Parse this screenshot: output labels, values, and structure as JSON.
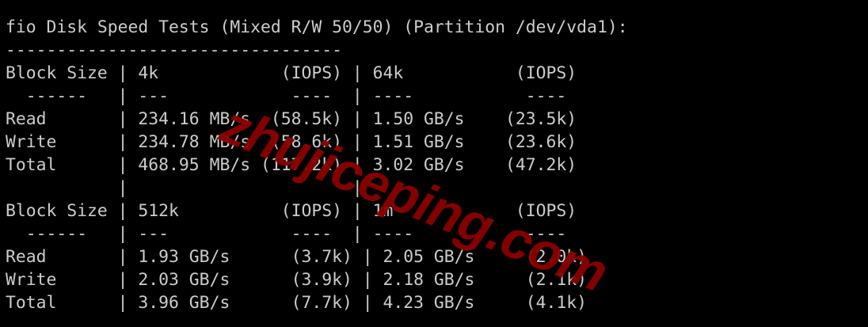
{
  "terminal": {
    "lines": [
      "fio Disk Speed Tests (Mixed R/W 50/50) (Partition /dev/vda1):",
      "---------------------------------",
      "Block Size | 4k            (IOPS) | 64k           (IOPS)",
      "  ------   | ---            ----  | ----           ---- ",
      "Read       | 234.16 MB/s  (58.5k) | 1.50 GB/s    (23.5k)",
      "Write      | 234.78 MB/s  (58.6k) | 1.51 GB/s    (23.6k)",
      "Total      | 468.95 MB/s (117.2k) | 3.02 GB/s    (47.2k)",
      "           |                      |",
      "Block Size | 512k          (IOPS) | 1m            (IOPS)",
      "  ------   | ---            ----  | ----           ---- ",
      "Read       | 1.93 GB/s      (3.7k) | 2.05 GB/s     (2.0k)",
      "Write      | 2.03 GB/s      (3.9k) | 2.18 GB/s     (2.1k)",
      "Total      | 3.96 GB/s      (7.7k) | 4.23 GB/s     (4.1k)"
    ],
    "text_color": "#cccccc",
    "background": "#000000"
  },
  "watermark": {
    "text": "zhujiceping.com",
    "color": "#8b0000"
  }
}
